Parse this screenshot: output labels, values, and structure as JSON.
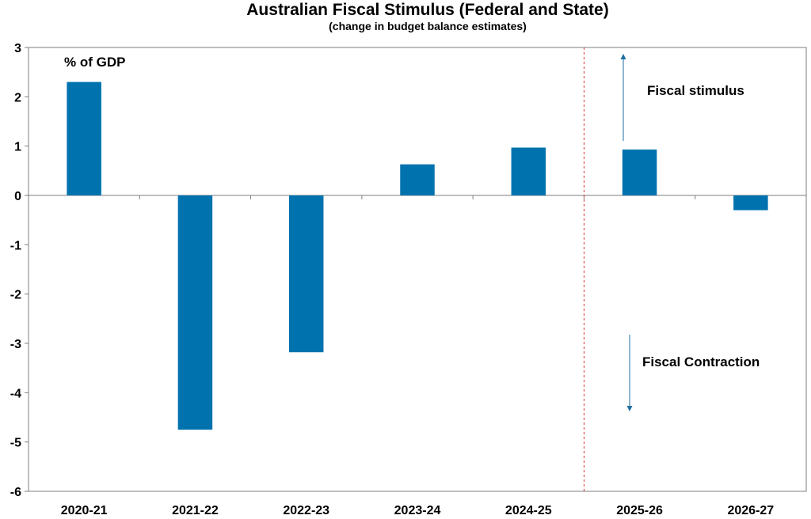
{
  "chart_data": {
    "type": "bar",
    "title": "Australian Fiscal Stimulus (Federal and State)",
    "subtitle": "(change in budget balance estimates)",
    "unit_label": "% of GDP",
    "xlabel": "",
    "ylabel": "",
    "categories": [
      "2020-21",
      "2021-22",
      "2022-23",
      "2023-24",
      "2024-25",
      "2025-26",
      "2026-27"
    ],
    "values": [
      2.3,
      -4.75,
      -3.18,
      0.63,
      0.97,
      0.93,
      -0.3
    ],
    "ylim": [
      -6,
      3
    ],
    "yticks": [
      "3",
      "2",
      "1",
      "0",
      "-1",
      "-2",
      "-3",
      "-4",
      "-5",
      "-6"
    ],
    "grid": false,
    "forecast_divider_after": "2024-25",
    "annotations": {
      "stimulus": "Fiscal stimulus",
      "contraction": "Fiscal Contraction"
    },
    "colors": {
      "bar": "#0072ae",
      "divider": "#e03030",
      "arrow": "#1f6fa0",
      "axis": "#7f7f7f"
    }
  }
}
